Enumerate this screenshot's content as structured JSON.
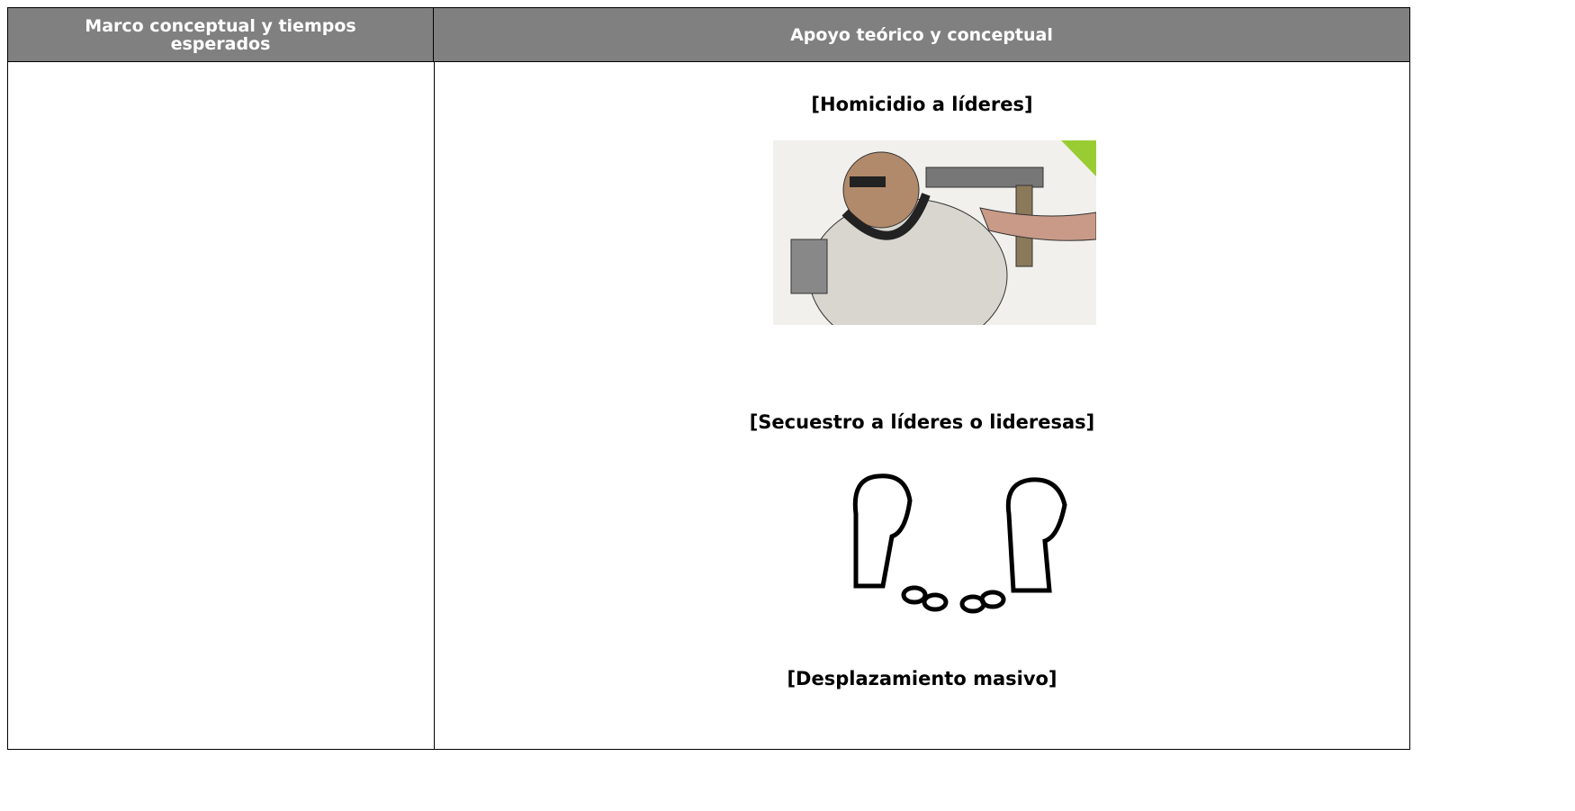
{
  "table": {
    "headers": [
      "Marco conceptual y tiempos esperados",
      "Apoyo teórico y conceptual"
    ],
    "items": [
      "[Homicidio a líderes]",
      "[Secuestro a líderes o lideresas]",
      "[Desplazamiento masivo]"
    ]
  }
}
